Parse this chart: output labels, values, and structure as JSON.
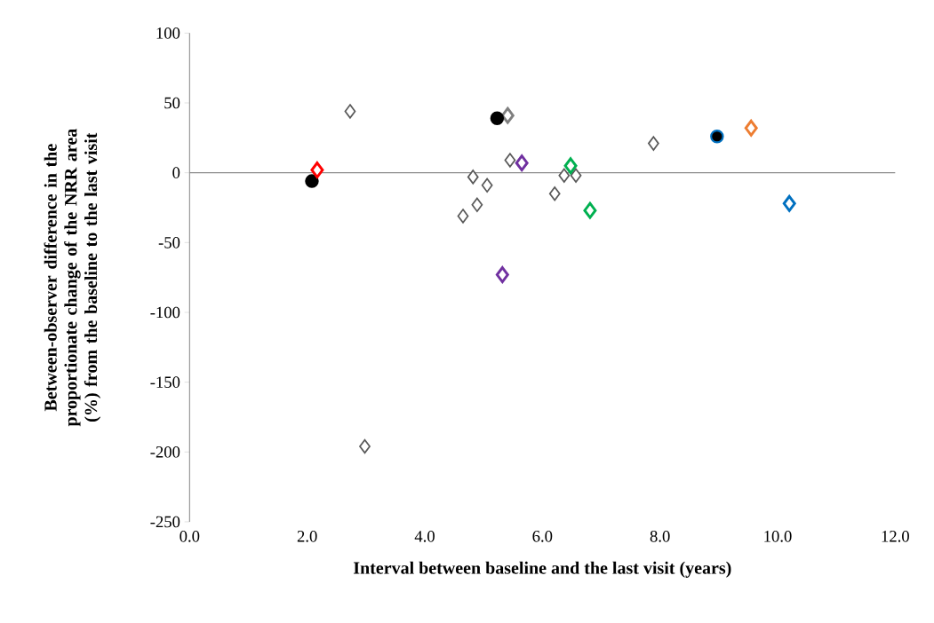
{
  "chart_data": {
    "type": "scatter",
    "xlabel": "Interval between baseline and the last visit (years)",
    "ylabel": "Between-observer difference in the proportionate change of the NRR area (%) from the baseline to the last visit",
    "xlim": [
      0,
      12
    ],
    "ylim": [
      -250,
      100
    ],
    "xticks": [
      {
        "value": 0,
        "label": "0.0"
      },
      {
        "value": 2,
        "label": "2.0"
      },
      {
        "value": 4,
        "label": "4.0"
      },
      {
        "value": 6,
        "label": "6.0"
      },
      {
        "value": 8,
        "label": "8.0"
      },
      {
        "value": 10,
        "label": "10.0"
      },
      {
        "value": 12,
        "label": "12.0"
      }
    ],
    "yticks": [
      -250,
      -200,
      -150,
      -100,
      -50,
      0,
      50,
      100
    ],
    "series": [
      {
        "color": "#595959",
        "marker": "diamond",
        "x": [
          2.73,
          2.98,
          4.65,
          4.82,
          4.89,
          5.06,
          5.45,
          6.21,
          6.37,
          6.57,
          7.89
        ],
        "values": [
          44,
          -196,
          -31,
          -3,
          -23,
          -9,
          9,
          -15,
          -2,
          -2,
          21
        ]
      },
      {
        "color": "#7f7f7f",
        "marker": "diamond",
        "x": [
          5.41
        ],
        "values": [
          41
        ]
      },
      {
        "color": "#000000",
        "marker": "circle",
        "x": [
          2.08,
          5.23
        ],
        "values": [
          -6,
          39
        ]
      },
      {
        "color": "#0070c0",
        "marker": "circle",
        "x": [
          8.97
        ],
        "values": [
          26
        ]
      },
      {
        "color": "#ff0000",
        "marker": "diamond",
        "x": [
          2.17
        ],
        "values": [
          2
        ]
      },
      {
        "color": "#7030a0",
        "marker": "diamond",
        "x": [
          5.65,
          5.32
        ],
        "values": [
          7,
          -73
        ]
      },
      {
        "color": "#00b050",
        "marker": "diamond",
        "x": [
          6.48,
          6.81
        ],
        "values": [
          5,
          -27
        ]
      },
      {
        "color": "#0070c0",
        "marker": "diamond",
        "x": [
          10.2
        ],
        "values": [
          -22
        ]
      },
      {
        "color": "#ed7d31",
        "marker": "diamond",
        "x": [
          9.55
        ],
        "values": [
          32
        ]
      }
    ]
  }
}
